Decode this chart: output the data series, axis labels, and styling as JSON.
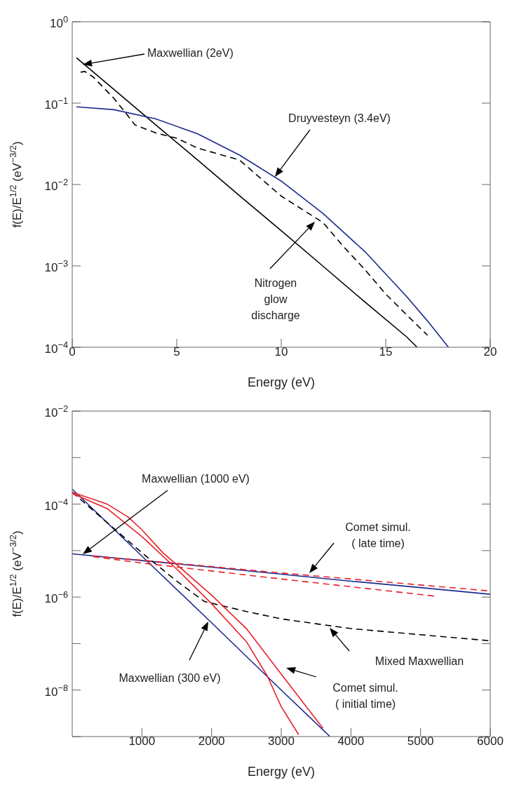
{
  "chart_data": [
    {
      "type": "line",
      "xlabel": "Energy (eV)",
      "ylabel": "f(E)/E$^{1/2}$  (eV$^{−3/2}$)",
      "log": "y",
      "marker": "none",
      "xlim": [
        0,
        20
      ],
      "xticks": [
        0,
        5,
        10,
        15,
        20
      ],
      "ylim": [
        0.0001,
        1
      ],
      "yticks": [
        {
          "value": 1,
          "label": "10$^{0}$"
        },
        {
          "value": 0.1,
          "label": "10$^{−1}$"
        },
        {
          "value": 0.01,
          "label": "10$^{−2}$"
        },
        {
          "value": 0.001,
          "label": "10$^{−3}$"
        },
        {
          "value": 0.0001,
          "label": "10$^{−4}$"
        }
      ],
      "series": [
        {
          "color": "#000000",
          "line_style": "solid",
          "x": [
            0.2,
            2,
            4,
            6,
            8,
            10,
            12,
            14,
            16,
            16.5
          ],
          "values": [
            0.36,
            0.147,
            0.054,
            0.02,
            0.0073,
            0.0027,
            0.00099,
            0.00036,
            0.000134,
            0.0001
          ]
        },
        {
          "color": "#1c2a8c",
          "line_style": "solid",
          "x": [
            0.2,
            2,
            4,
            6,
            8,
            10,
            12,
            14,
            16,
            17,
            18
          ],
          "values": [
            0.09,
            0.083,
            0.064,
            0.042,
            0.023,
            0.011,
            0.0044,
            0.0015,
            0.00042,
            0.00021,
            0.0001
          ]
        },
        {
          "color": "#000000",
          "line_style": "dashed",
          "x": [
            0.4,
            0.6,
            1,
            2,
            2.5,
            3,
            4,
            5,
            6,
            8,
            10,
            12,
            13,
            14,
            15,
            16,
            17
          ],
          "values": [
            0.24,
            0.245,
            0.21,
            0.114,
            0.079,
            0.054,
            0.043,
            0.037,
            0.028,
            0.02,
            0.0072,
            0.0034,
            0.0017,
            0.0009,
            0.00045,
            0.00025,
            0.00014
          ]
        }
      ],
      "annotations": [
        "Maxwellian (2eV)",
        "Druyvesteyn (3.4eV)",
        "Nitrogen\nglow\ndischarge"
      ]
    },
    {
      "type": "line",
      "xlabel": "Energy (eV)",
      "ylabel": "f(E)/E$^{1/2}$  (eV$^{−3/2}$)",
      "log": "y",
      "marker": "none",
      "xlim": [
        0,
        6000
      ],
      "xticks": [
        1000,
        2000,
        3000,
        4000,
        5000,
        6000
      ],
      "ylim": [
        1e-09,
        0.01
      ],
      "yticks": [
        {
          "value": 0.01,
          "label": "10$^{−2}$"
        },
        {
          "value": 0.001,
          "label": null
        },
        {
          "value": 0.0001,
          "label": "10$^{−4}$"
        },
        {
          "value": 1e-05,
          "label": null
        },
        {
          "value": 1e-06,
          "label": "10$^{−6}$"
        },
        {
          "value": 1e-07,
          "label": null
        },
        {
          "value": 1e-08,
          "label": "10$^{−8}$"
        },
        {
          "value": 1e-09,
          "label": null
        }
      ],
      "series": [
        {
          "color": "#1c2a8c",
          "line_style": "solid",
          "x": [
            0,
            1000,
            2000,
            3000,
            4000,
            5000,
            6000
          ],
          "values": [
            8.5e-06,
            6.1e-06,
            4.4e-06,
            3.1e-06,
            2.2e-06,
            1.6e-06,
            1.15e-06
          ]
        },
        {
          "color": "#1c2a8c",
          "line_style": "solid",
          "x": [
            0,
            1000,
            2000,
            3000,
            3700
          ],
          "values": [
            0.00021,
            7.6e-06,
            2.8e-07,
            1e-08,
            1e-09
          ]
        },
        {
          "color": "#000000",
          "line_style": "dashed",
          "x": [
            0,
            500,
            1000,
            1500,
            1900,
            2500,
            3000,
            4000,
            5000,
            6000
          ],
          "values": [
            0.00018,
            4e-05,
            9e-06,
            2.2e-06,
            8e-07,
            4.9e-07,
            3.4e-07,
            2.1e-07,
            1.55e-07,
            1.15e-07
          ]
        },
        {
          "color": "#e8202a",
          "line_style": "dashed",
          "x": [
            300,
            1000,
            3000,
            6000
          ],
          "values": [
            7.6e-06,
            6.2e-06,
            3.3e-06,
            1.35e-06
          ]
        },
        {
          "color": "#e8202a",
          "line_style": "dashed",
          "x": [
            300,
            1000,
            3000,
            5200
          ],
          "values": [
            7.4e-06,
            5.4e-06,
            2.45e-06,
            1.05e-06
          ]
        },
        {
          "color": "#e8202a",
          "line_style": "solid",
          "x": [
            0,
            500,
            800,
            1000,
            1300,
            1500,
            2000,
            2500,
            3000,
            3600
          ],
          "values": [
            0.00018,
            0.0001,
            5.3e-05,
            2.8e-05,
            9e-06,
            5e-06,
            1.1e-06,
            2.1e-07,
            2.2e-08,
            1.5e-09
          ]
        },
        {
          "color": "#e8202a",
          "line_style": "solid",
          "x": [
            0,
            500,
            1000,
            1500,
            2000,
            2500,
            2800,
            3000,
            3250
          ],
          "values": [
            0.00017,
            8e-05,
            2e-05,
            4e-06,
            7.2e-07,
            1.1e-07,
            2e-08,
            4.4e-09,
            1.1e-09
          ]
        }
      ],
      "annotations": [
        "Maxwellian (1000 eV)",
        "Comet simul.\n( late time)",
        "Mixed Maxwellian",
        "Maxwellian (300 eV)",
        "Comet simul.\n( initial time)"
      ]
    }
  ]
}
